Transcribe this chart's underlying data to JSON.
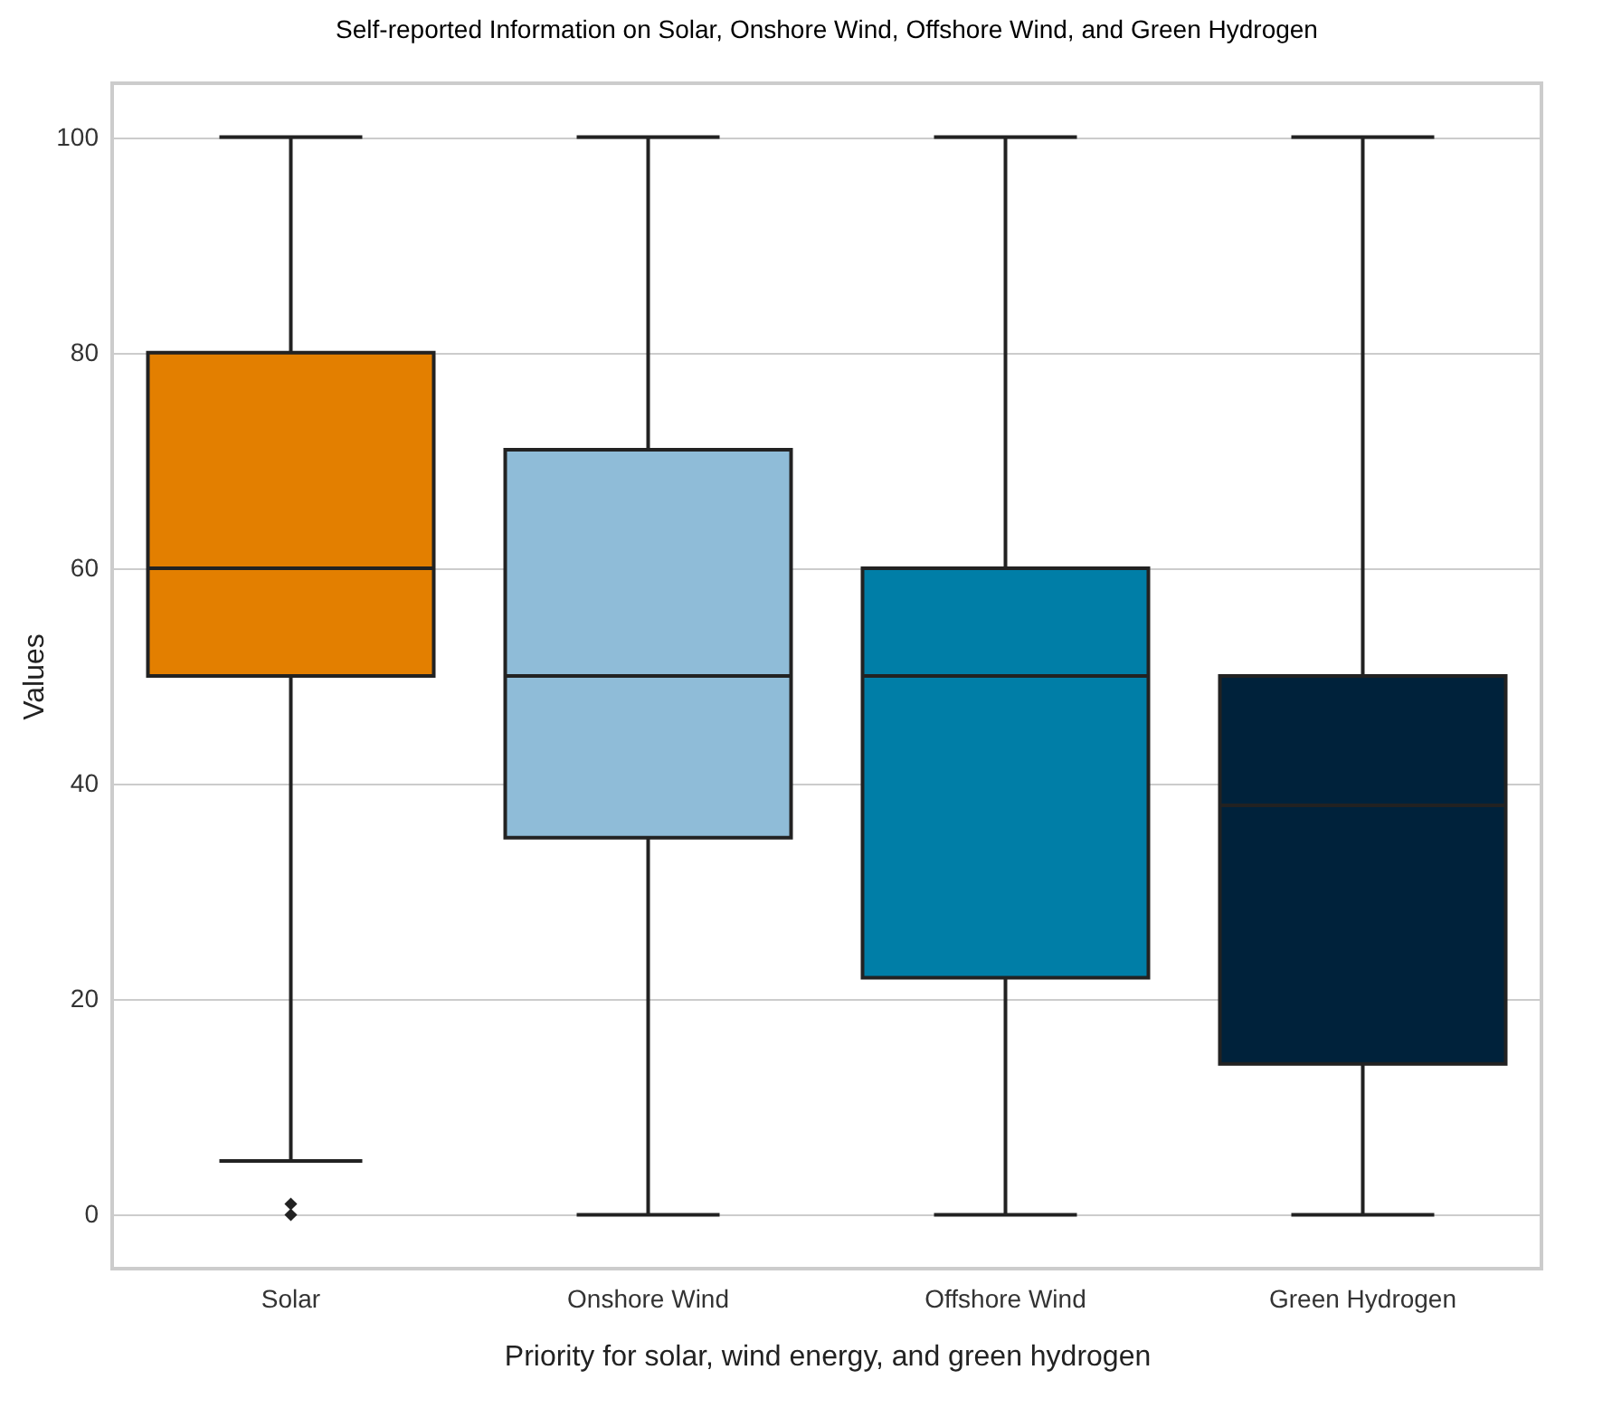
{
  "chart_data": {
    "type": "box",
    "title": "Self-reported Information on Solar, Onshore Wind, Offshore Wind, and Green Hydrogen",
    "xlabel": "Priority for solar, wind energy, and green hydrogen",
    "ylabel": "Values",
    "categories": [
      "Solar",
      "Onshore Wind",
      "Offshore Wind",
      "Green Hydrogen"
    ],
    "colors": [
      "#e37f00",
      "#8fbcd8",
      "#007ea7",
      "#00223b"
    ],
    "boxes": [
      {
        "low": 5,
        "q1": 50,
        "median": 60,
        "q3": 80,
        "high": 100,
        "outliers": [
          0,
          1
        ]
      },
      {
        "low": 0,
        "q1": 35,
        "median": 50,
        "q3": 71,
        "high": 100
      },
      {
        "low": 0,
        "q1": 22,
        "median": 50,
        "q3": 60,
        "high": 100
      },
      {
        "low": 0,
        "q1": 14,
        "median": 38,
        "q3": 50,
        "high": 100
      }
    ],
    "ylim": [
      -5,
      105
    ],
    "yticks": [
      0,
      20,
      40,
      60,
      80,
      100
    ],
    "grid": "y",
    "marker": "diamond",
    "legend": false
  }
}
